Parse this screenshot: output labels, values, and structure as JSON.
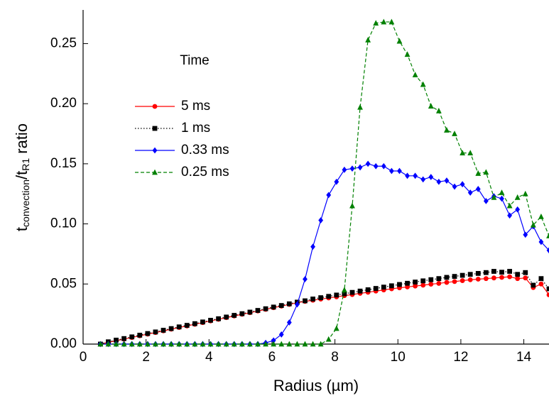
{
  "chart_data": {
    "type": "line",
    "x_label": "Radius (µm)",
    "y_label_parts": [
      "t",
      "convection",
      "/t",
      "R1",
      " ratio"
    ],
    "legend_title": "Time",
    "legend_position": "upper left",
    "xlim": [
      0,
      14.8
    ],
    "ylim": [
      0,
      0.278
    ],
    "xticks": [
      0,
      2,
      4,
      6,
      8,
      10,
      12,
      14
    ],
    "yticks": [
      {
        "value": 0,
        "label": "0.00"
      },
      {
        "value": 0.05,
        "label": "0.05"
      },
      {
        "value": 0.1,
        "label": "0.10"
      },
      {
        "value": 0.15,
        "label": "0.15"
      },
      {
        "value": 0.2,
        "label": "0.20"
      },
      {
        "value": 0.25,
        "label": "0.25"
      }
    ],
    "x": [
      0.55,
      0.8,
      1.05,
      1.3,
      1.55,
      1.8,
      2.05,
      2.3,
      2.55,
      2.8,
      3.05,
      3.3,
      3.55,
      3.8,
      4.05,
      4.3,
      4.55,
      4.8,
      5.05,
      5.3,
      5.55,
      5.8,
      6.05,
      6.3,
      6.55,
      6.8,
      7.05,
      7.3,
      7.55,
      7.8,
      8.05,
      8.3,
      8.55,
      8.8,
      9.05,
      9.3,
      9.55,
      9.8,
      10.05,
      10.3,
      10.55,
      10.8,
      11.05,
      11.3,
      11.55,
      11.8,
      12.05,
      12.3,
      12.55,
      12.8,
      13.05,
      13.3,
      13.55,
      13.8,
      14.05,
      14.3,
      14.55,
      14.8
    ],
    "series": [
      {
        "name": "5 ms",
        "color": "#ff0000",
        "dash": "solid",
        "marker": "circle",
        "values": [
          0,
          0.0014,
          0.0028,
          0.0041,
          0.0055,
          0.0069,
          0.0083,
          0.0096,
          0.011,
          0.0124,
          0.0138,
          0.0151,
          0.0165,
          0.0179,
          0.0193,
          0.0206,
          0.022,
          0.0234,
          0.0248,
          0.0261,
          0.0275,
          0.0289,
          0.0303,
          0.0316,
          0.033,
          0.0344,
          0.0355,
          0.0365,
          0.0374,
          0.0384,
          0.0393,
          0.0403,
          0.0412,
          0.0422,
          0.0431,
          0.0441,
          0.045,
          0.046,
          0.0468,
          0.0475,
          0.0483,
          0.049,
          0.0498,
          0.0505,
          0.0513,
          0.052,
          0.0528,
          0.0535,
          0.054,
          0.0545,
          0.055,
          0.0555,
          0.056,
          0.0545,
          0.055,
          0.047,
          0.05,
          0.041
        ]
      },
      {
        "name": "1 ms",
        "color": "#000000",
        "dash": "dotted",
        "marker": "square",
        "values": [
          0,
          0.0019,
          0.0033,
          0.0046,
          0.006,
          0.0074,
          0.0088,
          0.0101,
          0.0115,
          0.0129,
          0.0143,
          0.0156,
          0.017,
          0.0184,
          0.0198,
          0.0211,
          0.0225,
          0.0239,
          0.0253,
          0.0266,
          0.028,
          0.0294,
          0.0308,
          0.0321,
          0.0335,
          0.0349,
          0.036,
          0.0375,
          0.0386,
          0.0397,
          0.0408,
          0.0419,
          0.043,
          0.0441,
          0.0452,
          0.0463,
          0.0474,
          0.0485,
          0.0496,
          0.0506,
          0.0516,
          0.0526,
          0.0536,
          0.0545,
          0.0555,
          0.0563,
          0.0572,
          0.058,
          0.0588,
          0.0595,
          0.0605,
          0.0598,
          0.0605,
          0.058,
          0.0595,
          0.049,
          0.0545,
          0.046
        ]
      },
      {
        "name": "0.33 ms",
        "color": "#0000ff",
        "dash": "solid",
        "marker": "diamond",
        "values": [
          0,
          0,
          0,
          0,
          0,
          0,
          0,
          0,
          0,
          0,
          0,
          0,
          0,
          0,
          0,
          0,
          0,
          0,
          0,
          0,
          0,
          0.001,
          0.003,
          0.008,
          0.018,
          0.033,
          0.054,
          0.081,
          0.103,
          0.124,
          0.135,
          0.145,
          0.146,
          0.147,
          0.15,
          0.148,
          0.148,
          0.144,
          0.144,
          0.14,
          0.14,
          0.137,
          0.139,
          0.135,
          0.136,
          0.131,
          0.133,
          0.126,
          0.129,
          0.119,
          0.123,
          0.121,
          0.107,
          0.112,
          0.091,
          0.098,
          0.085,
          0.078
        ]
      },
      {
        "name": "0.25 ms",
        "color": "#008000",
        "dash": "dashed",
        "marker": "triangle",
        "values": [
          0,
          0,
          0,
          0,
          0,
          0,
          0,
          0,
          0,
          0,
          0,
          0,
          0,
          0,
          0,
          0,
          0,
          0,
          0,
          0,
          0,
          0,
          0,
          0,
          0,
          0,
          0,
          0,
          0,
          0.004,
          0.013,
          0.045,
          0.115,
          0.197,
          0.253,
          0.267,
          0.268,
          0.268,
          0.252,
          0.241,
          0.224,
          0.216,
          0.198,
          0.194,
          0.178,
          0.175,
          0.159,
          0.159,
          0.142,
          0.143,
          0.122,
          0.126,
          0.115,
          0.122,
          0.125,
          0.099,
          0.106,
          0.09
        ]
      }
    ]
  }
}
